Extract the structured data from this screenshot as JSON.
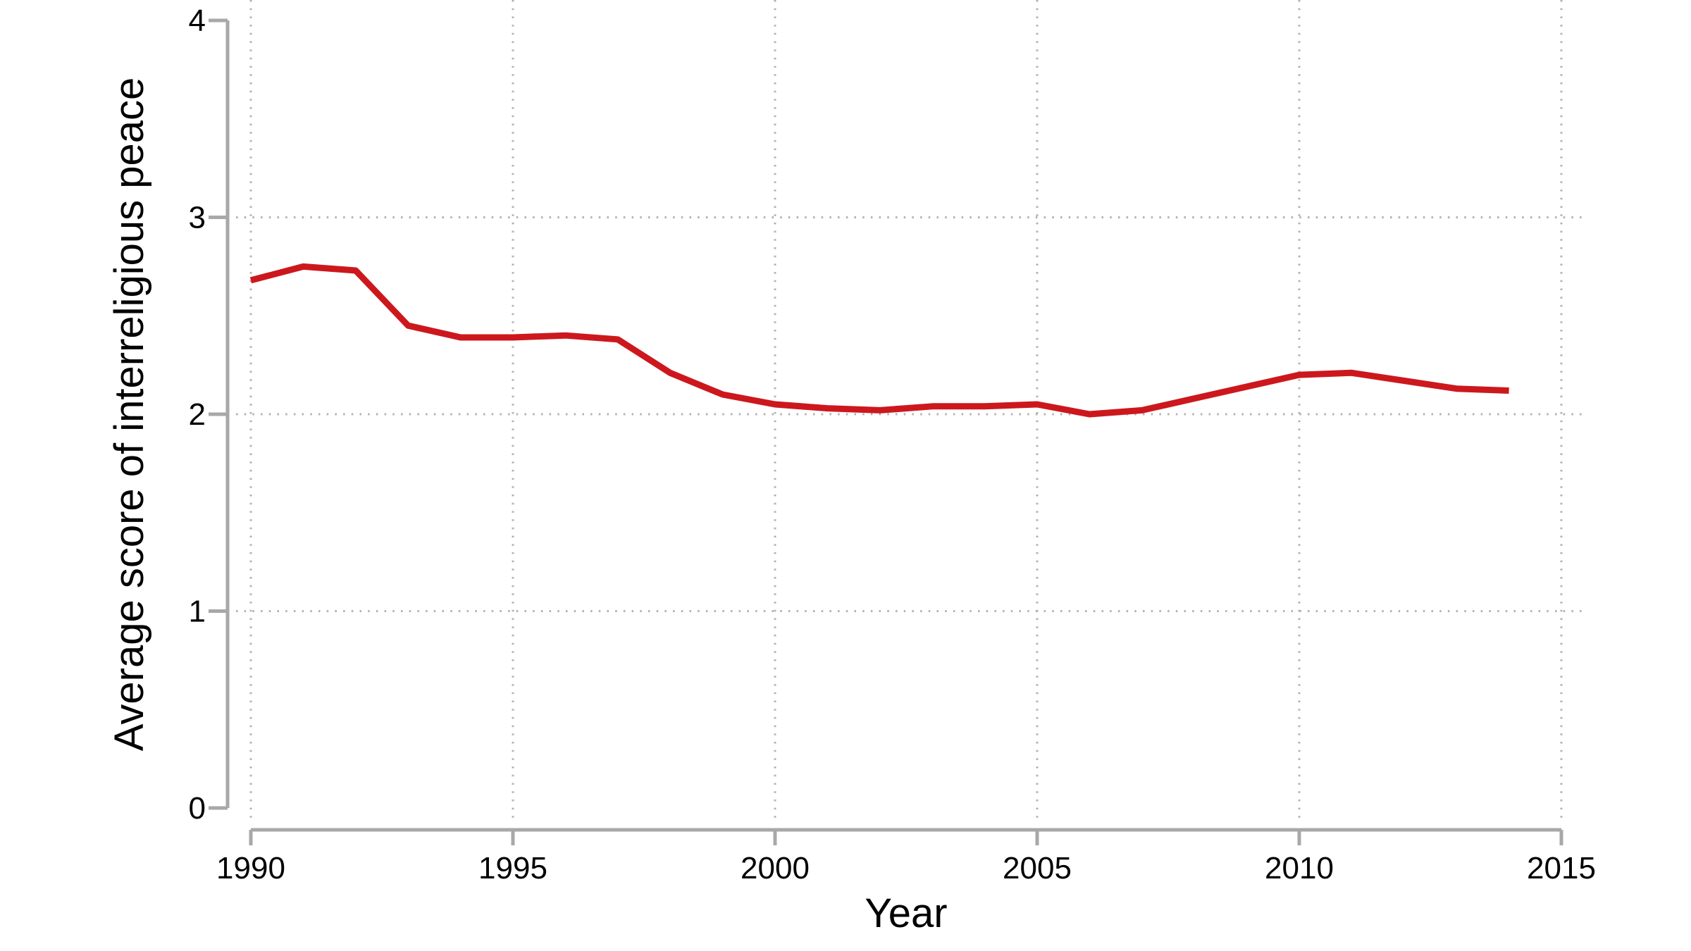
{
  "chart_data": {
    "type": "line",
    "title": "",
    "xlabel": "Year",
    "ylabel": "Average score of interreligious peace",
    "x": [
      1990,
      1991,
      1992,
      1993,
      1994,
      1995,
      1996,
      1997,
      1998,
      1999,
      2000,
      2001,
      2002,
      2003,
      2004,
      2005,
      2006,
      2007,
      2008,
      2009,
      2010,
      2011,
      2012,
      2013,
      2014
    ],
    "values": [
      2.68,
      2.75,
      2.73,
      2.45,
      2.39,
      2.39,
      2.4,
      2.38,
      2.21,
      2.1,
      2.05,
      2.03,
      2.02,
      2.04,
      2.04,
      2.05,
      2.0,
      2.02,
      2.08,
      2.14,
      2.2,
      2.21,
      2.17,
      2.13,
      2.12
    ],
    "xlim": [
      1990,
      2015
    ],
    "ylim": [
      0,
      4
    ],
    "xticks": [
      1990,
      1995,
      2000,
      2005,
      2010,
      2015
    ],
    "yticks": [
      0,
      1,
      2,
      3,
      4
    ],
    "grid_x_at": [
      1990,
      1995,
      2000,
      2005,
      2010,
      2015
    ],
    "grid_y_at": [
      1,
      2,
      3
    ],
    "grid_style": "dotted",
    "legend": "none"
  },
  "colors": {
    "background": "#ffffff",
    "line": "#cc181d",
    "axis": "#a8a8a8",
    "grid": "#b2b2b2",
    "text": "#000000"
  }
}
